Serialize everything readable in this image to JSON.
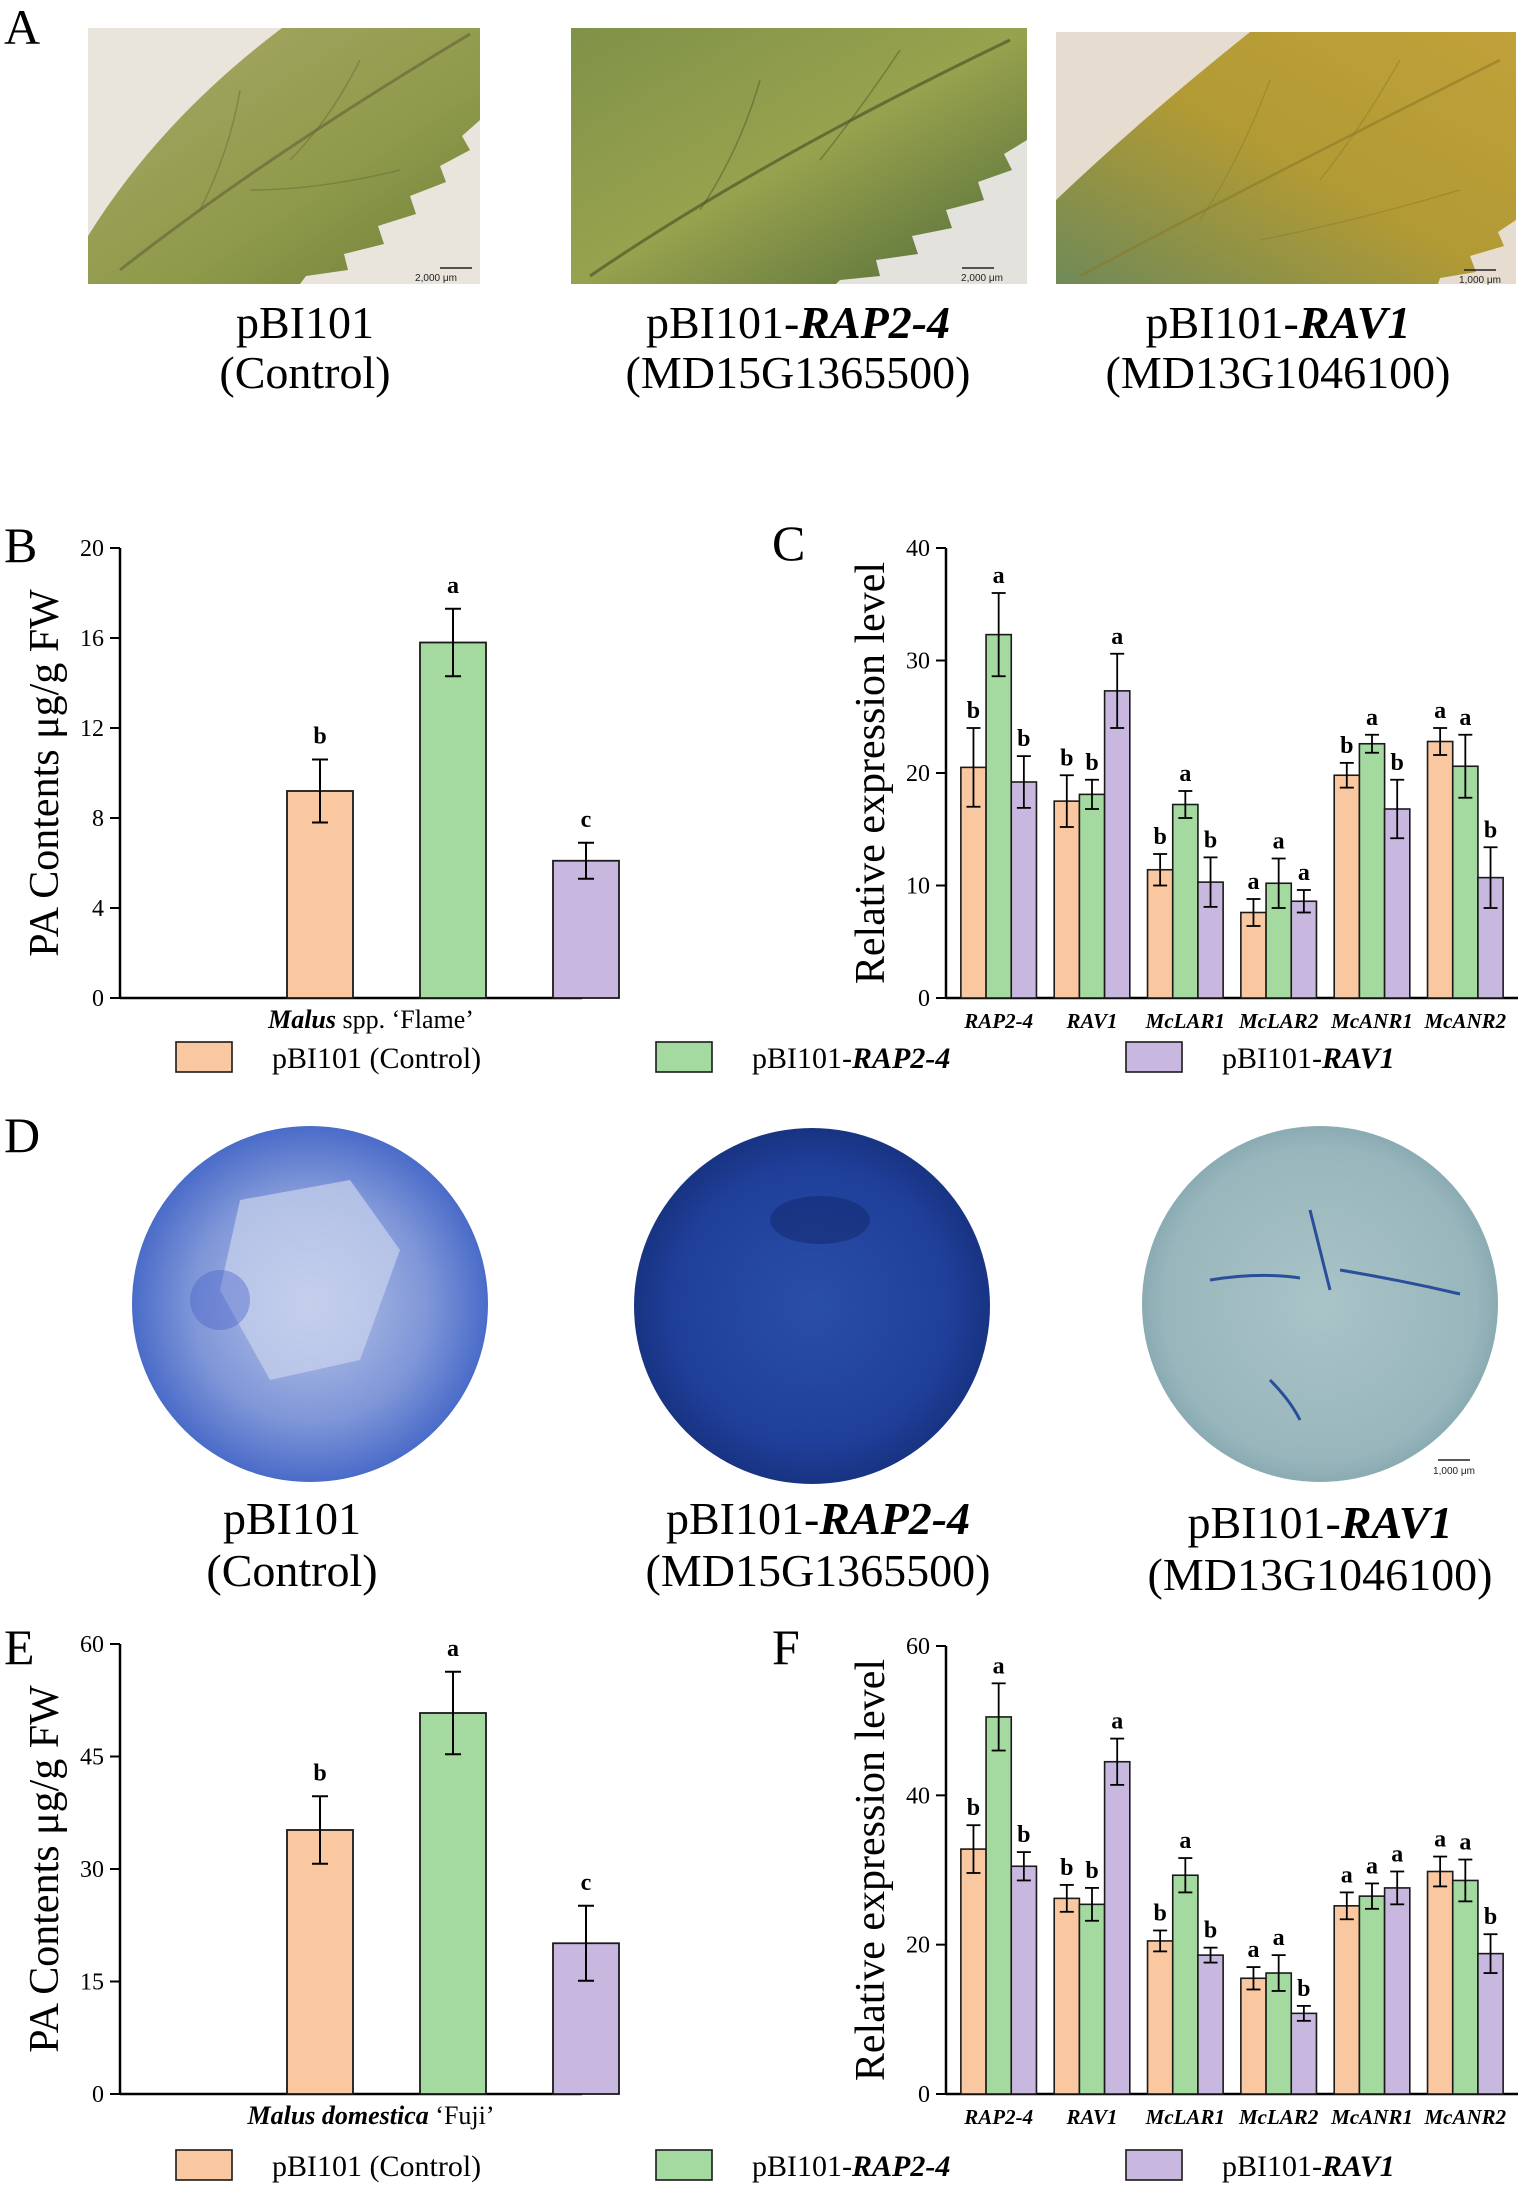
{
  "colors": {
    "control": "#FAC8A0",
    "rap24": "#A4D9A0",
    "rav1": "#C8B8E0",
    "edge": "#1a1a1a"
  },
  "panels": {
    "A": {
      "letter": "A",
      "images": [
        {
          "id": "leaf-control",
          "scale": "2,000 μm",
          "cap1": "pBI101",
          "cap2": "(Control)",
          "cap2_it": ""
        },
        {
          "id": "leaf-rap24",
          "scale": "2,000 μm",
          "cap1": "pBI101-",
          "cap1_it": "RAP2-4",
          "cap2": "(MD15G1365500)"
        },
        {
          "id": "leaf-rav1",
          "scale": "1,000 μm",
          "cap1": "pBI101-",
          "cap1_it": "RAV1",
          "cap2": "(MD13G1046100)"
        }
      ]
    },
    "D": {
      "letter": "D",
      "images": [
        {
          "id": "disc-control",
          "scale": "",
          "cap1": "pBI101",
          "cap2": "(Control)"
        },
        {
          "id": "disc-rap24",
          "scale": "",
          "cap1": "pBI101-",
          "cap1_it": "RAP2-4",
          "cap2": "(MD15G1365500)"
        },
        {
          "id": "disc-rav1",
          "scale": "1,000 μm",
          "cap1": "pBI101-",
          "cap1_it": "RAV1",
          "cap2": "(MD13G1046100)"
        }
      ]
    }
  },
  "legend": {
    "items": [
      {
        "pre": "pBI101 (Control)",
        "it": "",
        "color_key": "control"
      },
      {
        "pre": "pBI101-",
        "it": "RAP2-4",
        "color_key": "rap24"
      },
      {
        "pre": "pBI101-",
        "it": "RAV1",
        "color_key": "rav1"
      }
    ]
  },
  "chart_data": [
    {
      "panel": "B",
      "type": "bar",
      "ylabel": "PA Contents μg/g FW",
      "xlabel_it": "Malus",
      "xlabel_rest": " spp. ‘Flame’",
      "ylim": [
        0,
        20
      ],
      "yticks": [
        0,
        4,
        8,
        12,
        16,
        20
      ],
      "series": [
        {
          "name": "pBI101 (Control)",
          "value": 9.2,
          "err": 1.4,
          "sig": "b"
        },
        {
          "name": "pBI101-RAP2-4",
          "value": 15.8,
          "err": 1.5,
          "sig": "a"
        },
        {
          "name": "pBI101-RAV1",
          "value": 6.1,
          "err": 0.8,
          "sig": "c"
        }
      ]
    },
    {
      "panel": "C",
      "type": "bar",
      "ylabel": "Relative expression level",
      "ylim": [
        0,
        40
      ],
      "yticks": [
        0,
        10,
        20,
        30,
        40
      ],
      "categories": [
        "RAP2-4",
        "RAV1",
        "McLAR1",
        "McLAR2",
        "McANR1",
        "McANR2"
      ],
      "series": [
        {
          "name": "pBI101 (Control)",
          "values": [
            20.5,
            17.5,
            11.4,
            7.6,
            19.8,
            22.8
          ],
          "errs": [
            3.5,
            2.3,
            1.4,
            1.2,
            1.1,
            1.2
          ],
          "sig": [
            "b",
            "b",
            "b",
            "a",
            "b",
            "a"
          ]
        },
        {
          "name": "pBI101-RAP2-4",
          "values": [
            32.3,
            18.1,
            17.2,
            10.2,
            22.6,
            20.6
          ],
          "errs": [
            3.7,
            1.3,
            1.2,
            2.2,
            0.8,
            2.8
          ],
          "sig": [
            "a",
            "b",
            "a",
            "a",
            "a",
            "a"
          ]
        },
        {
          "name": "pBI101-RAV1",
          "values": [
            19.2,
            27.3,
            10.3,
            8.6,
            16.8,
            10.7
          ],
          "errs": [
            2.3,
            3.3,
            2.2,
            1.0,
            2.6,
            2.7
          ],
          "sig": [
            "b",
            "a",
            "b",
            "a",
            "b",
            "b"
          ]
        }
      ]
    },
    {
      "panel": "E",
      "type": "bar",
      "ylabel": "PA Contents μg/g FW",
      "xlabel_it": "Malus domestica",
      "xlabel_rest": " ‘Fuji’",
      "ylim": [
        0,
        60
      ],
      "yticks": [
        0,
        15,
        30,
        45,
        60
      ],
      "series": [
        {
          "name": "pBI101 (Control)",
          "value": 35.2,
          "err": 4.5,
          "sig": "b"
        },
        {
          "name": "pBI101-RAP2-4",
          "value": 50.8,
          "err": 5.5,
          "sig": "a"
        },
        {
          "name": "pBI101-RAV1",
          "value": 20.1,
          "err": 5.0,
          "sig": "c"
        }
      ]
    },
    {
      "panel": "F",
      "type": "bar",
      "ylabel": "Relative expression level",
      "ylim": [
        0,
        60
      ],
      "yticks": [
        0,
        20,
        40,
        60
      ],
      "categories": [
        "RAP2-4",
        "RAV1",
        "McLAR1",
        "McLAR2",
        "McANR1",
        "McANR2"
      ],
      "series": [
        {
          "name": "pBI101 (Control)",
          "values": [
            32.8,
            26.2,
            20.5,
            15.5,
            25.2,
            29.8
          ],
          "errs": [
            3.2,
            1.8,
            1.4,
            1.5,
            1.8,
            2.0
          ],
          "sig": [
            "b",
            "b",
            "b",
            "a",
            "a",
            "a"
          ]
        },
        {
          "name": "pBI101-RAP2-4",
          "values": [
            50.5,
            25.4,
            29.3,
            16.2,
            26.5,
            28.6
          ],
          "errs": [
            4.5,
            2.2,
            2.3,
            2.4,
            1.7,
            2.8
          ],
          "sig": [
            "a",
            "b",
            "a",
            "a",
            "a",
            "a"
          ]
        },
        {
          "name": "pBI101-RAV1",
          "values": [
            30.5,
            44.5,
            18.6,
            10.8,
            27.6,
            18.8
          ],
          "errs": [
            1.9,
            3.1,
            1.0,
            1.0,
            2.2,
            2.6
          ],
          "sig": [
            "b",
            "a",
            "b",
            "b",
            "a",
            "b"
          ]
        }
      ]
    }
  ]
}
